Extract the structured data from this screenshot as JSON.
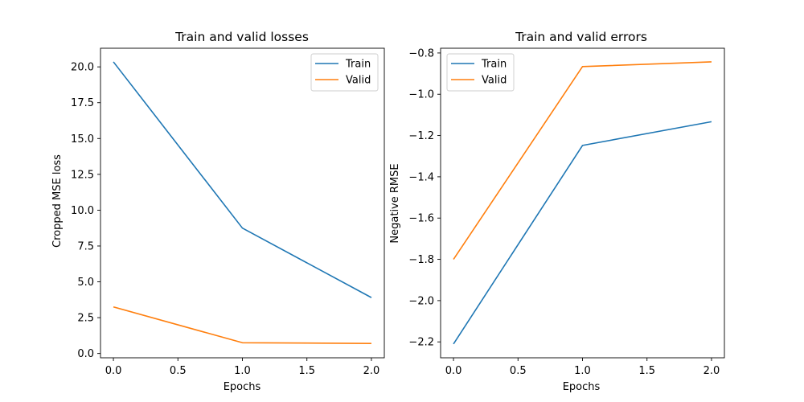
{
  "chart_data": [
    {
      "type": "line",
      "title": "Train and valid losses",
      "xlabel": "Epochs",
      "ylabel": "Cropped MSE loss",
      "x": [
        0.0,
        1.0,
        2.0
      ],
      "xticks": [
        0.0,
        0.5,
        1.0,
        1.5,
        2.0
      ],
      "xtick_labels": [
        "0.0",
        "0.5",
        "1.0",
        "1.5",
        "2.0"
      ],
      "yticks": [
        0.0,
        2.5,
        5.0,
        7.5,
        10.0,
        12.5,
        15.0,
        17.5,
        20.0
      ],
      "ytick_labels": [
        "0.0",
        "2.5",
        "5.0",
        "7.5",
        "10.0",
        "12.5",
        "15.0",
        "17.5",
        "20.0"
      ],
      "xlim": [
        -0.1,
        2.1
      ],
      "ylim": [
        -0.3,
        21.3
      ],
      "grid": false,
      "legend_position": "top-right",
      "series": [
        {
          "name": "Train",
          "color": "#1f77b4",
          "values": [
            20.35,
            8.75,
            3.9
          ]
        },
        {
          "name": "Valid",
          "color": "#ff7f0e",
          "values": [
            3.25,
            0.75,
            0.7
          ]
        }
      ]
    },
    {
      "type": "line",
      "title": "Train and valid errors",
      "xlabel": "Epochs",
      "ylabel": "Negative RMSE",
      "x": [
        0.0,
        1.0,
        2.0
      ],
      "xticks": [
        0.0,
        0.5,
        1.0,
        1.5,
        2.0
      ],
      "xtick_labels": [
        "0.0",
        "0.5",
        "1.0",
        "1.5",
        "2.0"
      ],
      "yticks": [
        -2.2,
        -2.0,
        -1.8,
        -1.6,
        -1.4,
        -1.2,
        -1.0,
        -0.8
      ],
      "ytick_labels": [
        "−2.2",
        "−2.0",
        "−1.8",
        "−1.6",
        "−1.4",
        "−1.2",
        "−1.0",
        "−0.8"
      ],
      "xlim": [
        -0.1,
        2.1
      ],
      "ylim": [
        -2.277,
        -0.777
      ],
      "grid": false,
      "legend_position": "top-left",
      "series": [
        {
          "name": "Train",
          "color": "#1f77b4",
          "values": [
            -2.21,
            -1.248,
            -1.133
          ]
        },
        {
          "name": "Valid",
          "color": "#ff7f0e",
          "values": [
            -1.8,
            -0.866,
            -0.843
          ]
        }
      ]
    }
  ]
}
